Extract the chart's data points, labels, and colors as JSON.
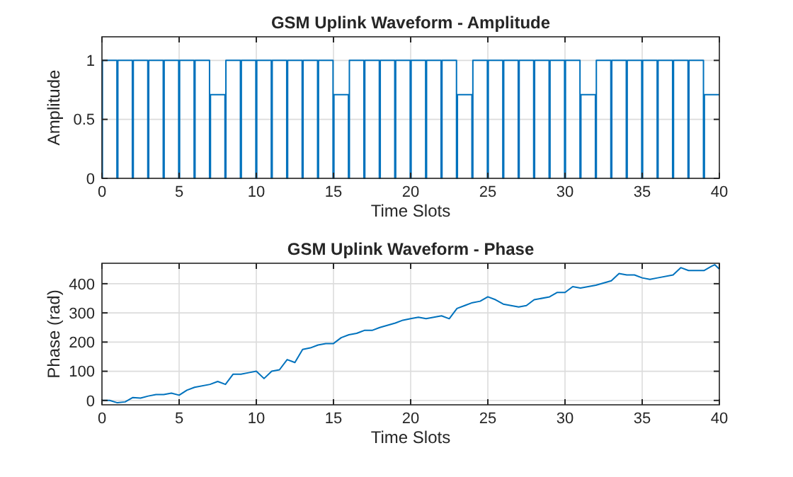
{
  "chart_data": [
    {
      "type": "step",
      "title": "GSM Uplink Waveform - Amplitude",
      "xlabel": "Time Slots",
      "ylabel": "Amplitude",
      "xlim": [
        0,
        40
      ],
      "xticks": [
        0,
        5,
        10,
        15,
        20,
        25,
        30,
        35,
        40
      ],
      "ylim": [
        0,
        1.2
      ],
      "yticks": [
        0,
        0.5,
        1
      ],
      "grid": true,
      "line_style": "solid",
      "series": [
        {
          "color": "#0072bd",
          "x": [
            0,
            0.03,
            0.97,
            1,
            1.03,
            1.97,
            2,
            2.03,
            2.97,
            3,
            3.03,
            3.97,
            4,
            4.03,
            4.97,
            5,
            5.03,
            5.97,
            6,
            6.03,
            6.97,
            7,
            7.03,
            7.97,
            8,
            8.03,
            8.97,
            9,
            9.03,
            9.97,
            10,
            10.03,
            10.97,
            11,
            11.03,
            11.97,
            12,
            12.03,
            12.97,
            13,
            13.03,
            13.97,
            14,
            14.03,
            14.97,
            15,
            15.03,
            15.97,
            16,
            16.03,
            16.97,
            17,
            17.03,
            17.97,
            18,
            18.03,
            18.97,
            19,
            19.03,
            19.97,
            20,
            20.03,
            20.97,
            21,
            21.03,
            21.97,
            22,
            22.03,
            22.97,
            23,
            23.03,
            23.97,
            24,
            24.03,
            24.97,
            25,
            25.03,
            25.97,
            26,
            26.03,
            26.97,
            27,
            27.03,
            27.97,
            28,
            28.03,
            28.97,
            29,
            29.03,
            29.97,
            30,
            30.03,
            30.97,
            31,
            31.03,
            31.97,
            32,
            32.03,
            32.97,
            33,
            33.03,
            33.97,
            34,
            34.03,
            34.97,
            35,
            35.03,
            35.97,
            36,
            36.03,
            36.97,
            37,
            37.03,
            37.97,
            38,
            38.03,
            38.97,
            39,
            39.03,
            40
          ],
          "values": [
            0,
            1,
            0,
            0,
            1,
            0,
            0,
            1,
            0,
            0,
            1,
            0,
            0,
            1,
            0,
            0,
            1,
            0,
            0,
            1,
            0,
            0,
            0.71,
            0,
            0,
            1,
            0,
            0,
            1,
            0,
            0,
            1,
            0,
            0,
            1,
            0,
            0,
            1,
            0,
            0,
            1,
            0,
            0,
            1,
            0,
            0,
            0.71,
            0,
            0,
            1,
            0,
            0,
            1,
            0,
            0,
            1,
            0,
            0,
            1,
            0,
            0,
            1,
            0,
            0,
            1,
            0,
            0,
            1,
            0,
            0,
            0.71,
            0,
            0,
            1,
            0,
            0,
            1,
            0,
            0,
            1,
            0,
            0,
            1,
            0,
            0,
            1,
            0,
            0,
            1,
            0,
            0,
            1,
            0,
            0,
            0.71,
            0,
            0,
            1,
            0,
            0,
            1,
            0,
            0,
            1,
            0,
            0,
            1,
            0,
            0,
            1,
            0,
            0,
            1,
            0,
            0,
            1,
            0,
            0,
            0.71,
            0.71
          ]
        }
      ]
    },
    {
      "type": "line",
      "title": "GSM Uplink Waveform - Phase",
      "xlabel": "Time Slots",
      "ylabel": "Phase (rad)",
      "xlim": [
        0,
        40
      ],
      "xticks": [
        0,
        5,
        10,
        15,
        20,
        25,
        30,
        35,
        40
      ],
      "ylim": [
        -15,
        470
      ],
      "yticks": [
        0,
        100,
        200,
        300,
        400
      ],
      "grid": true,
      "line_style": "solid",
      "series": [
        {
          "color": "#0072bd",
          "x": [
            0,
            0.5,
            1,
            1.5,
            2,
            2.5,
            3,
            3.5,
            4,
            4.5,
            5,
            5.5,
            6,
            7,
            7.5,
            8,
            8.5,
            9,
            9.5,
            10,
            10.5,
            11,
            11.5,
            12,
            12.5,
            13,
            13.5,
            14,
            14.5,
            15,
            15.5,
            16,
            16.5,
            17,
            17.5,
            18,
            19,
            19.5,
            20,
            20.5,
            21,
            21.5,
            22,
            22.5,
            23,
            23.5,
            24,
            24.5,
            25,
            25.5,
            26,
            27,
            27.5,
            28,
            29,
            29.5,
            30,
            30.5,
            31,
            32,
            33,
            33.5,
            34,
            34.5,
            35,
            35.5,
            36,
            37,
            37.5,
            38,
            39,
            39.5,
            39.7,
            40
          ],
          "values": [
            0,
            0,
            -8,
            -5,
            10,
            8,
            15,
            20,
            20,
            25,
            18,
            35,
            45,
            55,
            65,
            55,
            90,
            90,
            95,
            100,
            75,
            100,
            105,
            140,
            130,
            175,
            180,
            190,
            195,
            195,
            215,
            225,
            230,
            240,
            240,
            250,
            265,
            275,
            280,
            285,
            280,
            285,
            290,
            280,
            315,
            325,
            335,
            340,
            355,
            345,
            330,
            320,
            325,
            345,
            355,
            370,
            370,
            390,
            385,
            395,
            410,
            435,
            430,
            430,
            420,
            415,
            420,
            430,
            455,
            445,
            445,
            460,
            465,
            450
          ]
        }
      ]
    }
  ]
}
